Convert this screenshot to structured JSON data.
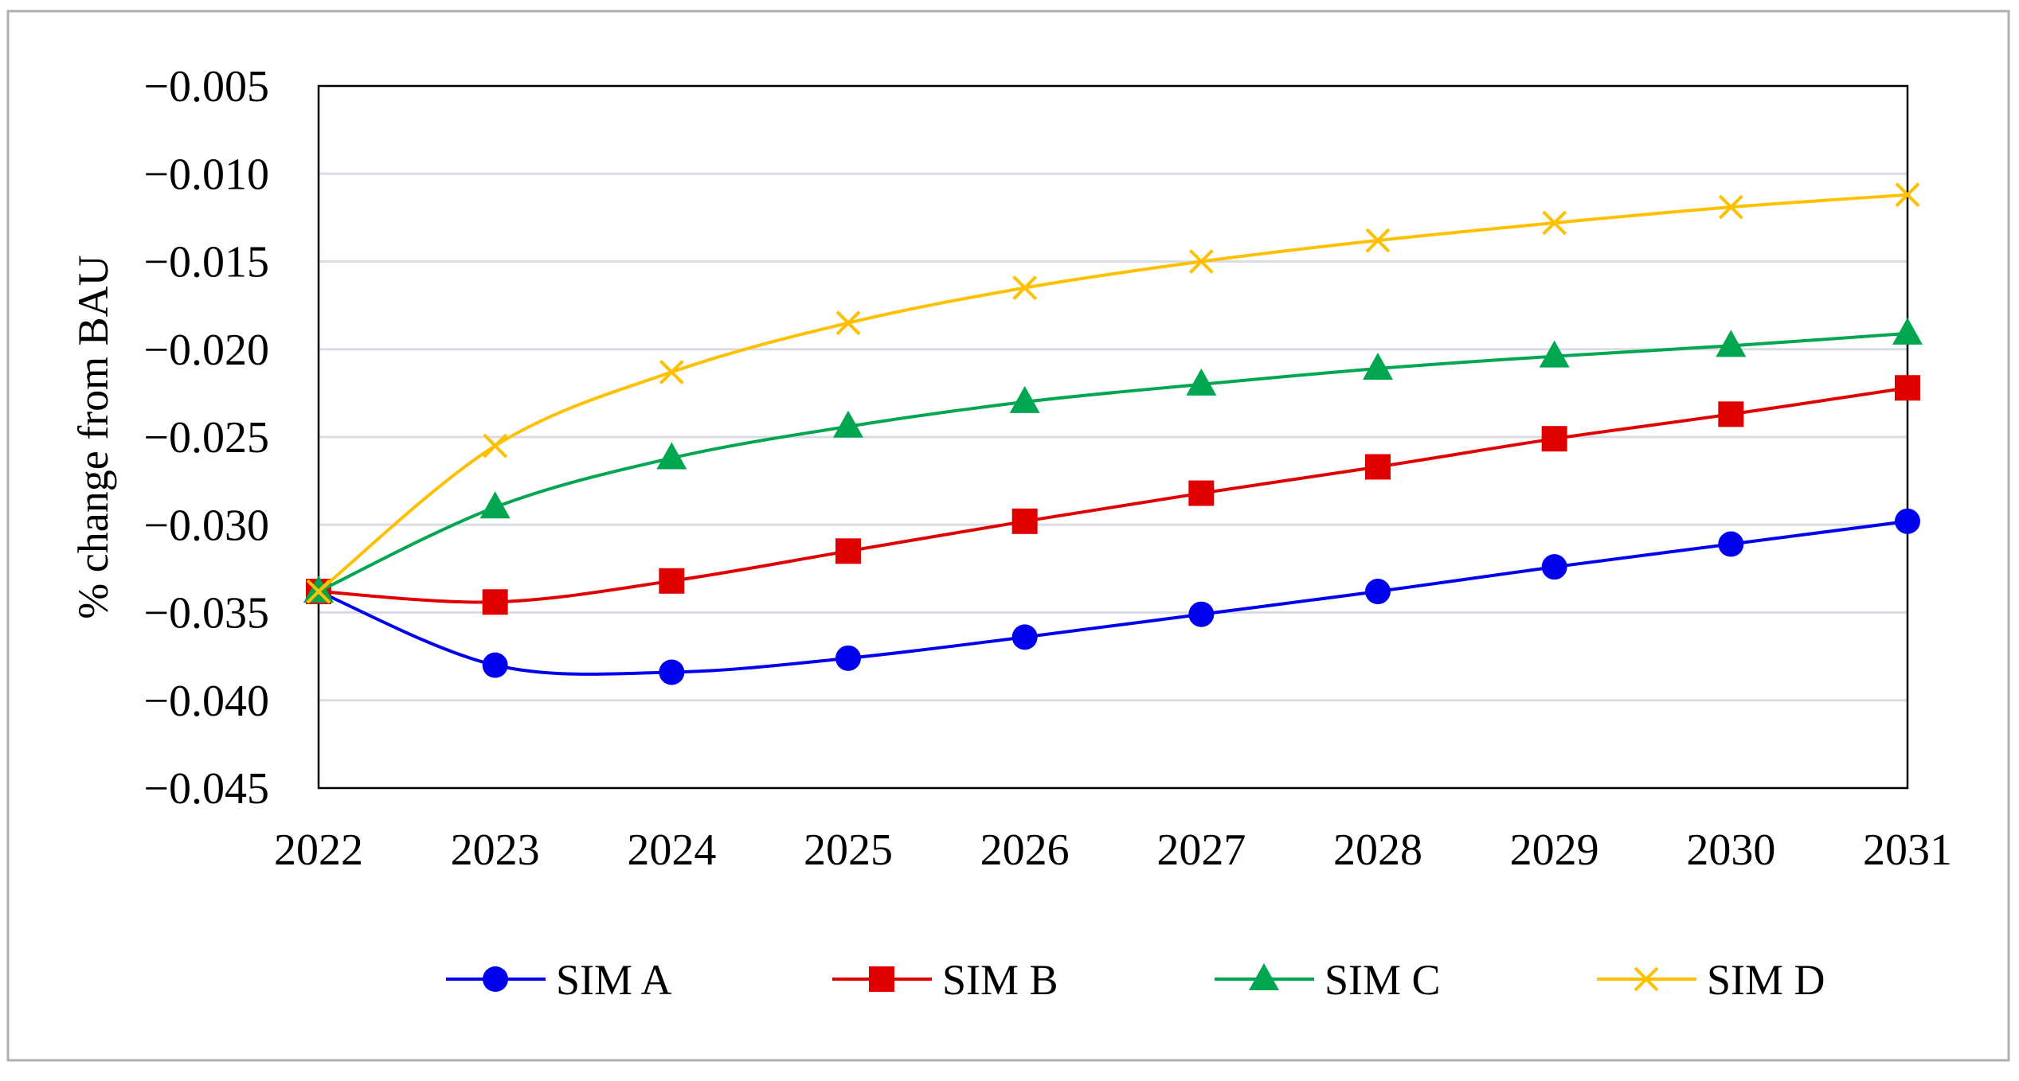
{
  "chart_data": {
    "type": "line",
    "title": "",
    "xlabel": "",
    "ylabel": "% change from BAU",
    "categories": [
      "2022",
      "2023",
      "2024",
      "2025",
      "2026",
      "2027",
      "2028",
      "2029",
      "2030",
      "2031"
    ],
    "ylim": [
      -0.045,
      -0.005
    ],
    "yticks": [
      -0.005,
      -0.01,
      -0.015,
      -0.02,
      -0.025,
      -0.03,
      -0.035,
      -0.04,
      -0.045
    ],
    "ytick_labels": [
      "−0.005",
      "−0.010",
      "−0.015",
      "−0.020",
      "−0.025",
      "−0.030",
      "−0.035",
      "−0.040",
      "−0.045"
    ],
    "grid": "horizontal",
    "legend_position": "bottom",
    "series": [
      {
        "name": "SIM A",
        "color": "#0000ee",
        "marker": "circle",
        "values": [
          -0.0338,
          -0.038,
          -0.0384,
          -0.0376,
          -0.0364,
          -0.0351,
          -0.0338,
          -0.0324,
          -0.0311,
          -0.0298
        ]
      },
      {
        "name": "SIM B",
        "color": "#e00000",
        "marker": "square",
        "values": [
          -0.0338,
          -0.0344,
          -0.0332,
          -0.0315,
          -0.0298,
          -0.0282,
          -0.0267,
          -0.0251,
          -0.0237,
          -0.0222
        ]
      },
      {
        "name": "SIM C",
        "color": "#00a650",
        "marker": "triangle",
        "values": [
          -0.0338,
          -0.029,
          -0.0262,
          -0.0244,
          -0.023,
          -0.022,
          -0.0211,
          -0.0204,
          -0.0198,
          -0.0191
        ]
      },
      {
        "name": "SIM D",
        "color": "#ffc000",
        "marker": "x",
        "values": [
          -0.0338,
          -0.0255,
          -0.0213,
          -0.0185,
          -0.0165,
          -0.015,
          -0.0138,
          -0.0128,
          -0.0119,
          -0.0112
        ]
      }
    ]
  }
}
